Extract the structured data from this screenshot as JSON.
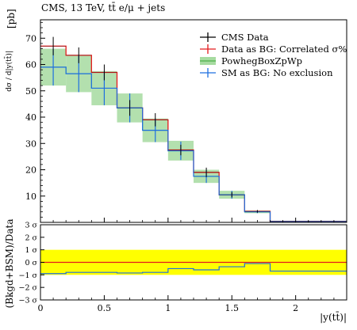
{
  "header": {
    "title": "CMS, 13 TeV, tt̄ e/μ + jets"
  },
  "main_panel": {
    "ylabel_frac": "dσ / d|y(tt̄)|",
    "ylabel_unit": "[pb]",
    "yticks": [
      10,
      20,
      30,
      40,
      50,
      60,
      70
    ],
    "ylim": [
      0,
      77
    ]
  },
  "ratio_panel": {
    "ylabel": "(Bkgd+BSM)/Data",
    "ytick_labels": [
      "3 σ",
      "2 σ",
      "1 σ",
      "0 σ",
      "−1 σ",
      "−2 σ",
      "−3 σ"
    ],
    "ytick_values": [
      3,
      2,
      1,
      0,
      -1,
      -2,
      -3
    ],
    "ylim": [
      -3,
      3
    ],
    "band": [
      -1,
      1
    ]
  },
  "xaxis": {
    "label": "|y(tt̄)|",
    "ticks": [
      0,
      0.5,
      1,
      1.5,
      2
    ],
    "tick_labels": [
      "0",
      "0.5",
      "1",
      "1.5",
      "2"
    ],
    "xlim": [
      0,
      2.4
    ]
  },
  "legend": [
    {
      "label": "CMS Data",
      "color": "#000000"
    },
    {
      "label": "Data as BG: Correlated σ%",
      "color": "#e41a1c"
    },
    {
      "label": "PowhegBoxZpWp",
      "color": "#a6dba0"
    },
    {
      "label": "SM as BG: No exclusion",
      "color": "#1e6fe0"
    }
  ],
  "colors": {
    "data": "#000000",
    "red": "#e41a1c",
    "green_band": "#a6dba0",
    "green_line": "#4daf4a",
    "blue": "#1e6fe0",
    "ratio_band": "#ffff00"
  },
  "chart_data": {
    "type": "line",
    "bin_edges": [
      0,
      0.2,
      0.4,
      0.6,
      0.8,
      1.0,
      1.2,
      1.4,
      1.6,
      1.8,
      2.4
    ],
    "series": [
      {
        "name": "CMS Data",
        "kind": "points",
        "values": [
          67,
          63.5,
          57,
          43.5,
          39,
          27.5,
          19,
          10.5,
          4.2,
          0.4
        ],
        "errors": [
          3.5,
          3.0,
          3.0,
          3.0,
          2.5,
          2.0,
          1.8,
          1.0,
          0.5,
          0.2
        ]
      },
      {
        "name": "Data as BG: Correlated σ%",
        "kind": "histogram",
        "values": [
          67,
          63.5,
          57,
          43.5,
          39,
          27.5,
          19,
          10.5,
          4.2,
          0.4
        ]
      },
      {
        "name": "PowhegBoxZpWp",
        "kind": "band",
        "values": [
          59,
          56.5,
          51,
          43.5,
          35,
          27.2,
          17.5,
          10.5,
          4.0,
          0.35
        ],
        "lower": [
          52,
          49.5,
          44.5,
          38,
          30.5,
          23.5,
          15,
          9,
          3.5,
          0.3
        ],
        "upper": [
          66,
          63.5,
          57.5,
          49,
          39.5,
          31,
          20,
          12,
          4.5,
          0.4
        ]
      },
      {
        "name": "SM as BG: No exclusion",
        "kind": "points",
        "values": [
          59,
          56.5,
          51,
          43.5,
          35,
          27.2,
          17.5,
          10.5,
          4.0,
          0.35
        ],
        "errors": [
          7.0,
          7.0,
          6.5,
          5.5,
          4.5,
          3.5,
          2.5,
          1.5,
          0.5,
          0.05
        ]
      }
    ],
    "ratio": {
      "Data as BG: Correlated σ%": [
        0,
        0,
        0,
        0,
        0,
        0,
        0,
        0,
        0,
        0
      ],
      "SM as BG: No exclusion": [
        -0.9,
        -0.8,
        -0.8,
        -0.85,
        -0.8,
        -0.5,
        -0.6,
        -0.35,
        -0.1,
        -0.7
      ]
    }
  }
}
